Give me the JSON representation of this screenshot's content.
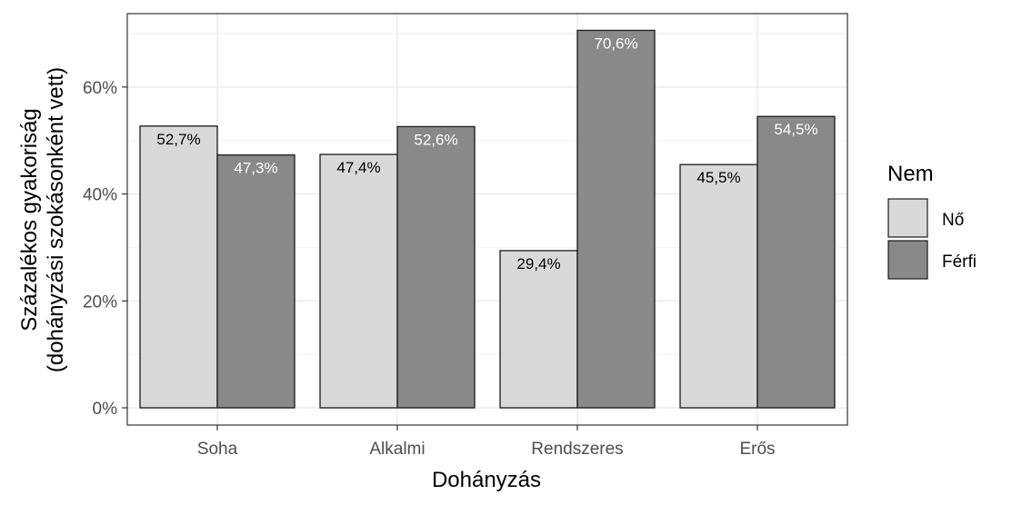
{
  "chart_data": {
    "type": "bar",
    "categories": [
      "Soha",
      "Alkalmi",
      "Rendszeres",
      "Erős"
    ],
    "series": [
      {
        "name": "Nő",
        "values": [
          52.7,
          47.4,
          29.4,
          45.5
        ],
        "labels": [
          "52,7%",
          "47,4%",
          "29,4%",
          "45,5%"
        ],
        "color": "#d9d9d9",
        "label_color": "#000000"
      },
      {
        "name": "Férfi",
        "values": [
          47.3,
          52.6,
          70.6,
          54.5
        ],
        "labels": [
          "47,3%",
          "52,6%",
          "70,6%",
          "54,5%"
        ],
        "color": "#898989",
        "label_color": "#ffffff"
      }
    ],
    "xlabel": "Dohányzás",
    "ylabel_lines": [
      "Százalékos gyakoriság",
      "(dohányzási szokásonként vett)"
    ],
    "ylim": [
      0,
      72
    ],
    "yticks": [
      0,
      20,
      40,
      60
    ],
    "ytick_labels": [
      "0%",
      "20%",
      "40%",
      "60%"
    ],
    "legend_title": "Nem",
    "legend_position": "right",
    "grid": true,
    "bar_border_color": "#1a1a1a"
  }
}
